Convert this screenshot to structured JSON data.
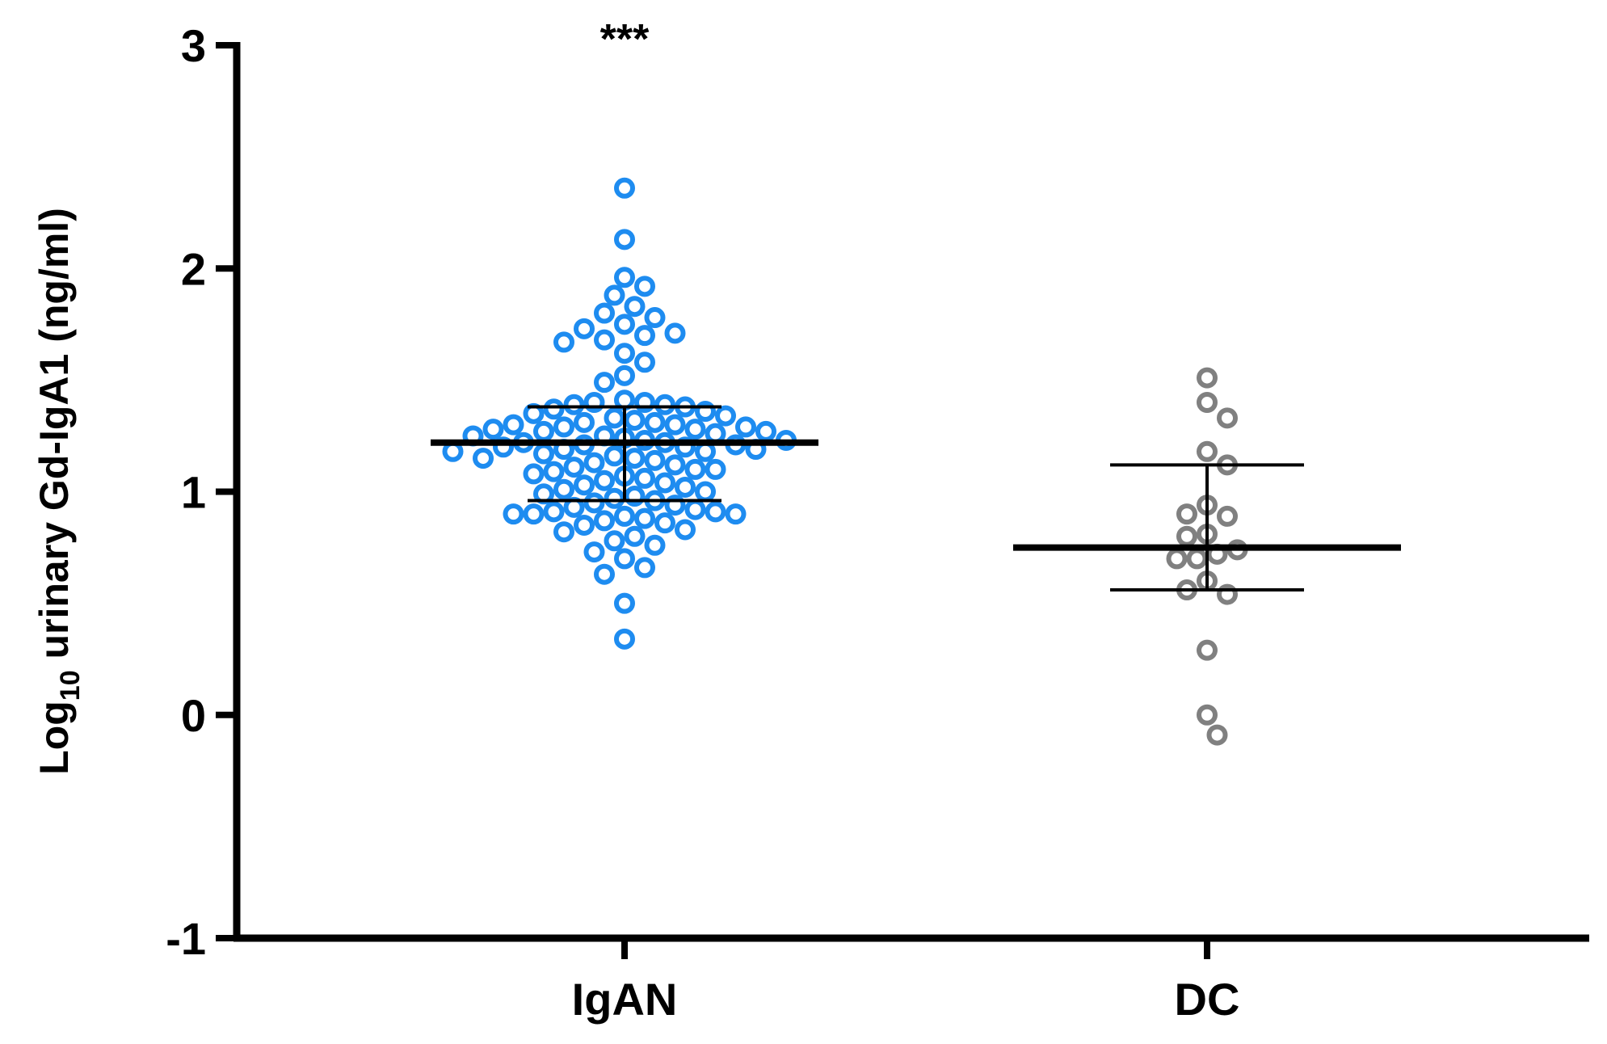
{
  "chart_data": {
    "type": "dot_plot",
    "annotation": "***",
    "ylabel": {
      "base": "Log",
      "subscript": "10",
      "rest": " urinary Gd-IgA1 (ng/ml)"
    },
    "categories": [
      "IgAN",
      "DC"
    ],
    "ylim": [
      -1,
      3
    ],
    "yticks": [
      -1,
      0,
      1,
      2,
      3
    ],
    "groups": [
      {
        "color": "#1e8cf0",
        "center": 1.22,
        "lower": 0.96,
        "upper": 1.38,
        "values": [
          2.36,
          2.13,
          1.96,
          1.92,
          1.88,
          1.83,
          1.8,
          1.78,
          1.75,
          1.73,
          1.71,
          1.7,
          1.68,
          1.67,
          1.62,
          1.58,
          1.52,
          1.49,
          1.41,
          1.4,
          1.4,
          1.39,
          1.39,
          1.38,
          1.37,
          1.36,
          1.35,
          1.34,
          1.33,
          1.32,
          1.31,
          1.31,
          1.3,
          1.3,
          1.29,
          1.29,
          1.28,
          1.28,
          1.27,
          1.27,
          1.26,
          1.25,
          1.25,
          1.24,
          1.23,
          1.23,
          1.22,
          1.22,
          1.21,
          1.21,
          1.2,
          1.2,
          1.19,
          1.19,
          1.18,
          1.18,
          1.17,
          1.16,
          1.15,
          1.15,
          1.14,
          1.13,
          1.12,
          1.11,
          1.1,
          1.1,
          1.09,
          1.08,
          1.07,
          1.06,
          1.05,
          1.04,
          1.03,
          1.02,
          1.01,
          1.0,
          0.99,
          0.98,
          0.97,
          0.96,
          0.95,
          0.94,
          0.93,
          0.92,
          0.91,
          0.91,
          0.9,
          0.9,
          0.9,
          0.89,
          0.88,
          0.87,
          0.86,
          0.85,
          0.83,
          0.82,
          0.8,
          0.78,
          0.76,
          0.73,
          0.7,
          0.66,
          0.63,
          0.5,
          0.34
        ]
      },
      {
        "color": "#808080",
        "center": 0.75,
        "lower": 0.56,
        "upper": 1.12,
        "values": [
          1.51,
          1.4,
          1.33,
          1.18,
          1.12,
          0.94,
          0.89,
          0.9,
          0.81,
          0.8,
          0.72,
          0.74,
          0.7,
          0.7,
          0.6,
          0.54,
          0.56,
          0.29,
          0.0,
          -0.09
        ]
      }
    ]
  }
}
